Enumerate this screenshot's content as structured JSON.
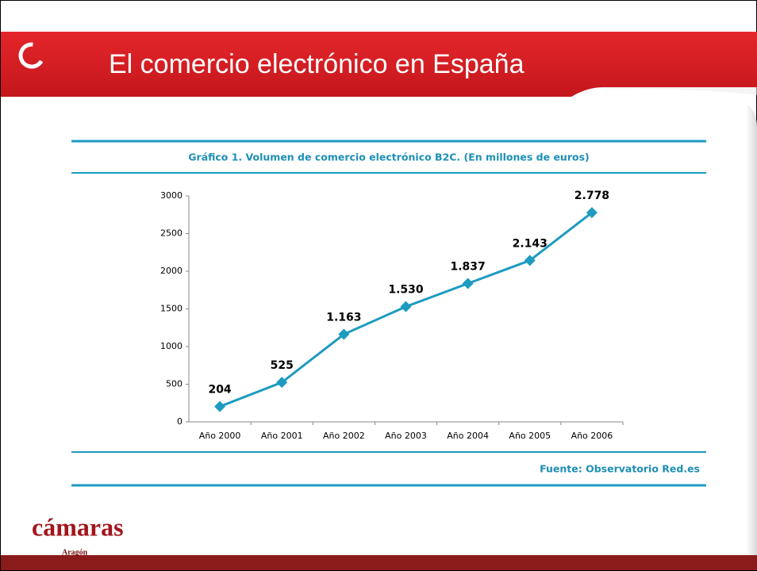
{
  "header": {
    "title": "El comercio electrónico en España"
  },
  "chart_data": {
    "type": "line",
    "title": "Gráfico 1. Volumen de comercio electrónico B2C. (En millones de euros)",
    "source": "Fuente: Observatorio Red.es",
    "categories": [
      "Año 2000",
      "Año 2001",
      "Año 2002",
      "Año 2003",
      "Año 2004",
      "Año 2005",
      "Año 2006"
    ],
    "values": [
      204,
      525,
      1163,
      1530,
      1837,
      2143,
      2778
    ],
    "value_labels": [
      "204",
      "525",
      "1.163",
      "1.530",
      "1.837",
      "2.143",
      "2.778"
    ],
    "color": "#1d9bc0",
    "ylim": [
      0,
      3000
    ],
    "yticks": [
      0,
      500,
      1000,
      1500,
      2000,
      2500,
      3000
    ],
    "grid": false
  },
  "footer": {
    "logo": "cámaras",
    "region": "Aragón"
  }
}
